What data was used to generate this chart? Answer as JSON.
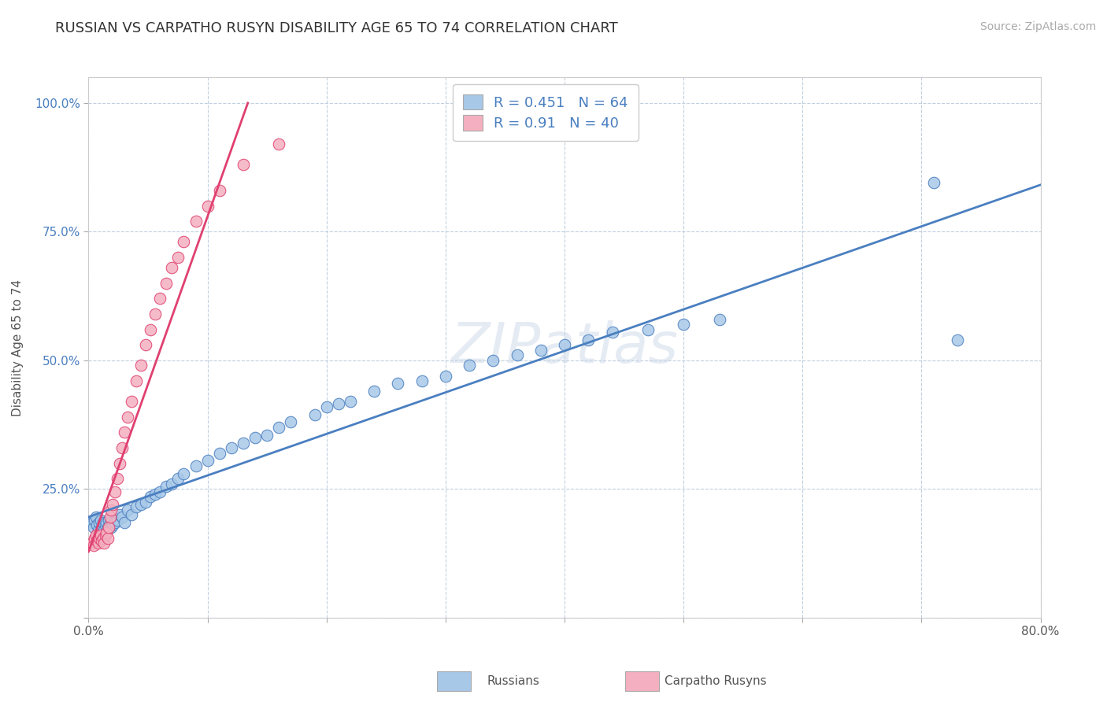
{
  "title": "RUSSIAN VS CARPATHO RUSYN DISABILITY AGE 65 TO 74 CORRELATION CHART",
  "source_text": "Source: ZipAtlas.com",
  "ylabel": "Disability Age 65 to 74",
  "xlim": [
    0.0,
    0.8
  ],
  "ylim": [
    0.0,
    1.05
  ],
  "xticks": [
    0.0,
    0.1,
    0.2,
    0.3,
    0.4,
    0.5,
    0.6,
    0.7,
    0.8
  ],
  "xticklabels": [
    "0.0%",
    "",
    "",
    "",
    "",
    "",
    "",
    "",
    "80.0%"
  ],
  "yticks": [
    0.0,
    0.25,
    0.5,
    0.75,
    1.0
  ],
  "yticklabels": [
    "",
    "25.0%",
    "50.0%",
    "75.0%",
    "100.0%"
  ],
  "russians_R": 0.451,
  "russians_N": 64,
  "carpatho_R": 0.91,
  "carpatho_N": 40,
  "russian_color": "#a8c8e8",
  "russian_line_color": "#4a7fc0",
  "carpatho_color": "#f4b0c0",
  "carpatho_line_color": "#e04070",
  "legend_text_color": "#4a7fc0",
  "background_color": "#ffffff",
  "grid_color": "#c0d0e0",
  "russians_x": [
    0.003,
    0.004,
    0.005,
    0.006,
    0.007,
    0.008,
    0.009,
    0.01,
    0.011,
    0.012,
    0.013,
    0.014,
    0.015,
    0.016,
    0.017,
    0.018,
    0.019,
    0.02,
    0.022,
    0.024,
    0.026,
    0.028,
    0.03,
    0.033,
    0.036,
    0.04,
    0.044,
    0.048,
    0.052,
    0.056,
    0.06,
    0.065,
    0.07,
    0.075,
    0.08,
    0.09,
    0.1,
    0.11,
    0.12,
    0.13,
    0.14,
    0.15,
    0.16,
    0.17,
    0.19,
    0.2,
    0.21,
    0.22,
    0.24,
    0.26,
    0.28,
    0.3,
    0.32,
    0.34,
    0.36,
    0.38,
    0.4,
    0.42,
    0.44,
    0.47,
    0.5,
    0.53,
    0.71,
    0.73
  ],
  "russians_y": [
    0.185,
    0.175,
    0.19,
    0.195,
    0.18,
    0.17,
    0.185,
    0.19,
    0.175,
    0.185,
    0.17,
    0.18,
    0.185,
    0.175,
    0.19,
    0.185,
    0.175,
    0.18,
    0.185,
    0.19,
    0.2,
    0.195,
    0.185,
    0.21,
    0.2,
    0.215,
    0.22,
    0.225,
    0.235,
    0.24,
    0.245,
    0.255,
    0.26,
    0.27,
    0.28,
    0.295,
    0.305,
    0.32,
    0.33,
    0.34,
    0.35,
    0.355,
    0.37,
    0.38,
    0.395,
    0.41,
    0.415,
    0.42,
    0.44,
    0.455,
    0.46,
    0.47,
    0.49,
    0.5,
    0.51,
    0.52,
    0.53,
    0.54,
    0.555,
    0.56,
    0.57,
    0.58,
    0.845,
    0.54
  ],
  "carpatho_x": [
    0.003,
    0.004,
    0.005,
    0.006,
    0.007,
    0.008,
    0.009,
    0.01,
    0.011,
    0.012,
    0.013,
    0.014,
    0.015,
    0.016,
    0.017,
    0.018,
    0.019,
    0.02,
    0.022,
    0.024,
    0.026,
    0.028,
    0.03,
    0.033,
    0.036,
    0.04,
    0.044,
    0.048,
    0.052,
    0.056,
    0.06,
    0.065,
    0.07,
    0.075,
    0.08,
    0.09,
    0.1,
    0.11,
    0.13,
    0.16
  ],
  "carpatho_y": [
    0.145,
    0.14,
    0.155,
    0.16,
    0.15,
    0.145,
    0.155,
    0.16,
    0.15,
    0.155,
    0.145,
    0.16,
    0.165,
    0.155,
    0.175,
    0.195,
    0.21,
    0.22,
    0.245,
    0.27,
    0.3,
    0.33,
    0.36,
    0.39,
    0.42,
    0.46,
    0.49,
    0.53,
    0.56,
    0.59,
    0.62,
    0.65,
    0.68,
    0.7,
    0.73,
    0.77,
    0.8,
    0.83,
    0.88,
    0.92
  ]
}
